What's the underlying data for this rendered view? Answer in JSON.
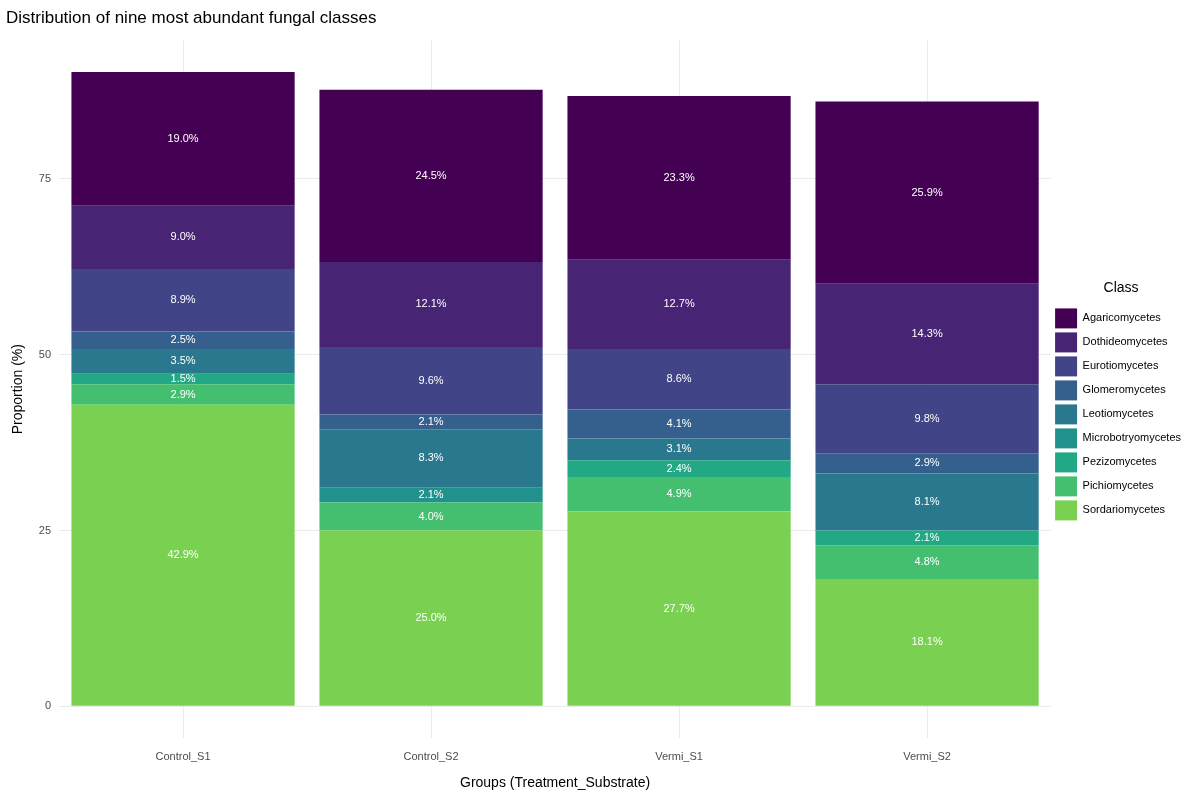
{
  "chart_data": {
    "type": "bar",
    "stacked": true,
    "title": "Distribution of nine most abundant fungal classes",
    "xlabel": "Groups (Treatment_Substrate)",
    "ylabel": "Proportion (%)",
    "legend_title": "Class",
    "legend": "right",
    "grid": true,
    "categories": [
      "Control_S1",
      "Control_S2",
      "Vermi_S1",
      "Vermi_S2"
    ],
    "ylim": [
      -4.5,
      94.7
    ],
    "yticks": [
      0,
      25,
      50,
      75
    ],
    "series": [
      {
        "name": "Sordariomycetes",
        "color": "#7ad151",
        "values": [
          42.9,
          25.0,
          27.7,
          18.1
        ],
        "value_labels": [
          "42.9%",
          "25.0%",
          "27.7%",
          "18.1%"
        ]
      },
      {
        "name": "Pichiomycetes",
        "color": "#44bf70",
        "values": [
          2.9,
          4.0,
          4.9,
          4.8
        ],
        "value_labels": [
          "2.9%",
          "4.0%",
          "4.9%",
          "4.8%"
        ]
      },
      {
        "name": "Pezizomycetes",
        "color": "#22a884",
        "values": [
          1.5,
          null,
          2.4,
          2.1
        ],
        "value_labels": [
          "1.5%",
          null,
          "2.4%",
          "2.1%"
        ]
      },
      {
        "name": "Microbotryomycetes",
        "color": "#21918c",
        "values": [
          null,
          2.1,
          null,
          null
        ],
        "value_labels": [
          null,
          "2.1%",
          null,
          null
        ]
      },
      {
        "name": "Leotiomycetes",
        "color": "#2a788e",
        "values": [
          3.5,
          8.3,
          3.1,
          8.1
        ],
        "value_labels": [
          "3.5%",
          "8.3%",
          "3.1%",
          "8.1%"
        ]
      },
      {
        "name": "Glomeromycetes",
        "color": "#355f8d",
        "values": [
          2.5,
          2.1,
          4.1,
          2.9
        ],
        "value_labels": [
          "2.5%",
          "2.1%",
          "4.1%",
          "2.9%"
        ]
      },
      {
        "name": "Eurotiomycetes",
        "color": "#414487",
        "values": [
          8.9,
          9.6,
          8.6,
          9.8
        ],
        "value_labels": [
          "8.9%",
          "9.6%",
          "8.6%",
          "9.8%"
        ]
      },
      {
        "name": "Dothideomycetes",
        "color": "#482475",
        "values": [
          9.0,
          12.1,
          12.7,
          14.3
        ],
        "value_labels": [
          "9.0%",
          "12.1%",
          "12.7%",
          "14.3%"
        ]
      },
      {
        "name": "Agaricomycetes",
        "color": "#440154",
        "values": [
          19.0,
          24.5,
          23.3,
          25.9
        ],
        "value_labels": [
          "19.0%",
          "24.5%",
          "23.3%",
          "25.9%"
        ]
      }
    ]
  }
}
